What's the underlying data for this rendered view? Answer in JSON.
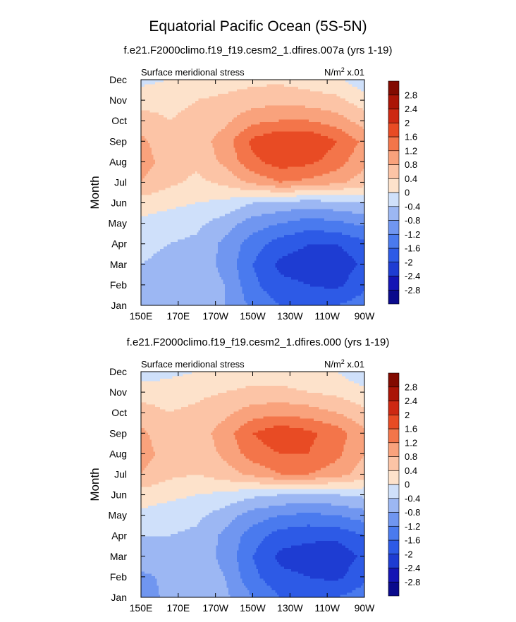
{
  "title": "Equatorial Pacific Ocean (5S-5N)",
  "chart_data": [
    {
      "type": "heatmap",
      "case_title": "f.e21.F2000climo.f19_f19.cesm2_1.dfires.007a (yrs 1-19)",
      "left_label": "Surface meridional stress",
      "units_base": "N/m",
      "units_sup": "2",
      "units_scale": " x.01",
      "ylabel": "Month",
      "x_ticks": [
        "150E",
        "170E",
        "170W",
        "150W",
        "130W",
        "110W",
        "90W"
      ],
      "x_tick_lons": [
        150,
        170,
        190,
        210,
        230,
        250,
        270
      ],
      "xlim": [
        150,
        270
      ],
      "y_ticks": [
        "Jan",
        "Feb",
        "Mar",
        "Apr",
        "May",
        "Jun",
        "Jul",
        "Aug",
        "Sep",
        "Oct",
        "Nov",
        "Dec"
      ],
      "levels": [
        -2.8,
        -2.4,
        -2,
        -1.6,
        -1.2,
        -0.8,
        -0.4,
        0,
        0.4,
        0.8,
        1.2,
        1.6,
        2,
        2.4,
        2.8
      ],
      "lons": [
        150,
        165,
        180,
        195,
        210,
        225,
        240,
        255,
        270
      ],
      "values": [
        [
          -0.6,
          -0.6,
          -0.6,
          -0.8,
          -1.3,
          -1.6,
          -1.7,
          -1.6,
          -1.4
        ],
        [
          -0.5,
          -0.6,
          -0.6,
          -0.8,
          -1.5,
          -1.9,
          -2.0,
          -2.1,
          -1.7
        ],
        [
          -0.4,
          -0.5,
          -0.6,
          -0.9,
          -1.6,
          -2.1,
          -2.2,
          -2.3,
          -1.9
        ],
        [
          -0.3,
          -0.4,
          -0.5,
          -0.9,
          -1.4,
          -1.8,
          -2.0,
          -2.0,
          -1.7
        ],
        [
          -0.1,
          -0.2,
          -0.3,
          -0.6,
          -1.0,
          -1.2,
          -1.4,
          -1.3,
          -1.1
        ],
        [
          0.2,
          0.1,
          0.0,
          -0.1,
          -0.4,
          -0.5,
          -0.6,
          -0.5,
          -0.4
        ],
        [
          0.8,
          0.5,
          0.3,
          0.5,
          0.9,
          1.2,
          1.1,
          0.9,
          0.6
        ],
        [
          1.0,
          0.6,
          0.5,
          0.9,
          1.5,
          1.8,
          1.7,
          1.4,
          0.9
        ],
        [
          0.9,
          0.5,
          0.6,
          1.0,
          1.7,
          2.0,
          2.0,
          1.6,
          1.1
        ],
        [
          0.6,
          0.4,
          0.5,
          0.7,
          1.1,
          1.2,
          1.2,
          1.0,
          0.6
        ],
        [
          0.2,
          0.3,
          0.4,
          0.5,
          0.6,
          0.7,
          0.6,
          0.5,
          0.2
        ],
        [
          -0.1,
          0.0,
          0.1,
          0.2,
          0.3,
          0.3,
          0.2,
          0.1,
          -0.3
        ]
      ]
    },
    {
      "type": "heatmap",
      "case_title": "f.e21.F2000climo.f19_f19.cesm2_1.dfires.000 (yrs 1-19)",
      "left_label": "Surface meridional stress",
      "units_base": "N/m",
      "units_sup": "2",
      "units_scale": " x.01",
      "ylabel": "Month",
      "x_ticks": [
        "150E",
        "170E",
        "170W",
        "150W",
        "130W",
        "110W",
        "90W"
      ],
      "x_tick_lons": [
        150,
        170,
        190,
        210,
        230,
        250,
        270
      ],
      "xlim": [
        150,
        270
      ],
      "y_ticks": [
        "Jan",
        "Feb",
        "Mar",
        "Apr",
        "May",
        "Jun",
        "Jul",
        "Aug",
        "Sep",
        "Oct",
        "Nov",
        "Dec"
      ],
      "levels": [
        -2.8,
        -2.4,
        -2,
        -1.6,
        -1.2,
        -0.8,
        -0.4,
        0,
        0.4,
        0.8,
        1.2,
        1.6,
        2,
        2.4,
        2.8
      ],
      "lons": [
        150,
        165,
        180,
        195,
        210,
        225,
        240,
        255,
        270
      ],
      "values": [
        [
          -1.0,
          -0.7,
          -0.6,
          -0.7,
          -1.2,
          -1.6,
          -1.7,
          -1.6,
          -1.4
        ],
        [
          -0.9,
          -0.7,
          -0.6,
          -0.8,
          -1.5,
          -1.9,
          -2.0,
          -2.1,
          -1.7
        ],
        [
          -0.5,
          -0.5,
          -0.6,
          -0.9,
          -1.6,
          -2.1,
          -2.2,
          -2.3,
          -1.9
        ],
        [
          -0.4,
          -0.4,
          -0.5,
          -0.9,
          -1.4,
          -1.8,
          -1.9,
          -1.9,
          -1.6
        ],
        [
          -0.1,
          -0.2,
          -0.3,
          -0.6,
          -1.0,
          -1.2,
          -1.3,
          -1.2,
          -1.0
        ],
        [
          0.2,
          0.1,
          0.0,
          -0.1,
          -0.3,
          -0.4,
          -0.5,
          -0.4,
          -0.3
        ],
        [
          0.8,
          0.5,
          0.4,
          0.6,
          0.9,
          1.2,
          1.2,
          1.0,
          0.6
        ],
        [
          1.0,
          0.6,
          0.5,
          0.9,
          1.4,
          1.6,
          1.6,
          1.3,
          0.8
        ],
        [
          0.9,
          0.5,
          0.6,
          1.0,
          1.6,
          1.9,
          1.7,
          1.4,
          0.9
        ],
        [
          0.6,
          0.4,
          0.5,
          0.7,
          1.0,
          1.1,
          1.0,
          0.8,
          0.5
        ],
        [
          0.2,
          0.2,
          0.3,
          0.4,
          0.5,
          0.5,
          0.4,
          0.3,
          0.1
        ],
        [
          -0.2,
          -0.1,
          0.0,
          0.1,
          0.2,
          0.2,
          0.1,
          0.0,
          -0.3
        ]
      ]
    }
  ],
  "colors": [
    "#0a0a8c",
    "#1414b4",
    "#1e3cd2",
    "#2d5ae6",
    "#4a7aee",
    "#7096f0",
    "#9cb7f3",
    "#cfe0fa",
    "#fde2cb",
    "#fcc4a6",
    "#f9a27c",
    "#f3754a",
    "#e84b24",
    "#cd2812",
    "#aa1406",
    "#820a00"
  ]
}
